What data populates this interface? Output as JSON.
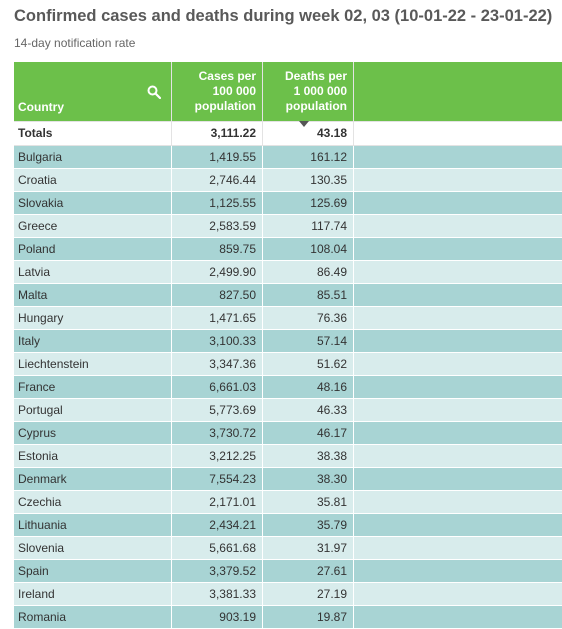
{
  "title": "Confirmed cases and deaths during week 02, 03 (10-01-22 - 23-01-22)",
  "subtitle": "14-day notification rate",
  "chart_data": {
    "type": "table",
    "columns": [
      "Country",
      "Cases per 100 000 population",
      "Deaths per 1 000 000 population"
    ],
    "column_lines": {
      "cases": [
        "Cases per",
        "100 000",
        "population"
      ],
      "deaths": [
        "Deaths per",
        "1 000 000",
        "population"
      ]
    },
    "totals": {
      "label": "Totals",
      "cases": "3,111.22",
      "deaths": "43.18"
    },
    "rows": [
      {
        "country": "Bulgaria",
        "cases": "1,419.55",
        "deaths": "161.12"
      },
      {
        "country": "Croatia",
        "cases": "2,746.44",
        "deaths": "130.35"
      },
      {
        "country": "Slovakia",
        "cases": "1,125.55",
        "deaths": "125.69"
      },
      {
        "country": "Greece",
        "cases": "2,583.59",
        "deaths": "117.74"
      },
      {
        "country": "Poland",
        "cases": "859.75",
        "deaths": "108.04"
      },
      {
        "country": "Latvia",
        "cases": "2,499.90",
        "deaths": "86.49"
      },
      {
        "country": "Malta",
        "cases": "827.50",
        "deaths": "85.51"
      },
      {
        "country": "Hungary",
        "cases": "1,471.65",
        "deaths": "76.36"
      },
      {
        "country": "Italy",
        "cases": "3,100.33",
        "deaths": "57.14"
      },
      {
        "country": "Liechtenstein",
        "cases": "3,347.36",
        "deaths": "51.62"
      },
      {
        "country": "France",
        "cases": "6,661.03",
        "deaths": "48.16"
      },
      {
        "country": "Portugal",
        "cases": "5,773.69",
        "deaths": "46.33"
      },
      {
        "country": "Cyprus",
        "cases": "3,730.72",
        "deaths": "46.17"
      },
      {
        "country": "Estonia",
        "cases": "3,212.25",
        "deaths": "38.38"
      },
      {
        "country": "Denmark",
        "cases": "7,554.23",
        "deaths": "38.30"
      },
      {
        "country": "Czechia",
        "cases": "2,171.01",
        "deaths": "35.81"
      },
      {
        "country": "Lithuania",
        "cases": "2,434.21",
        "deaths": "35.79"
      },
      {
        "country": "Slovenia",
        "cases": "5,661.68",
        "deaths": "31.97"
      },
      {
        "country": "Spain",
        "cases": "3,379.52",
        "deaths": "27.61"
      },
      {
        "country": "Ireland",
        "cases": "3,381.33",
        "deaths": "27.19"
      },
      {
        "country": "Romania",
        "cases": "903.19",
        "deaths": "19.87"
      }
    ],
    "sort": {
      "column": "Deaths per 1 000 000 population",
      "order": "descending"
    }
  },
  "colors": {
    "header": "#6cc04a",
    "row_odd": "#a8d4d4",
    "row_even": "#d8ecec"
  },
  "icons": {
    "search": "search-icon",
    "sort": "sort-desc-icon"
  }
}
